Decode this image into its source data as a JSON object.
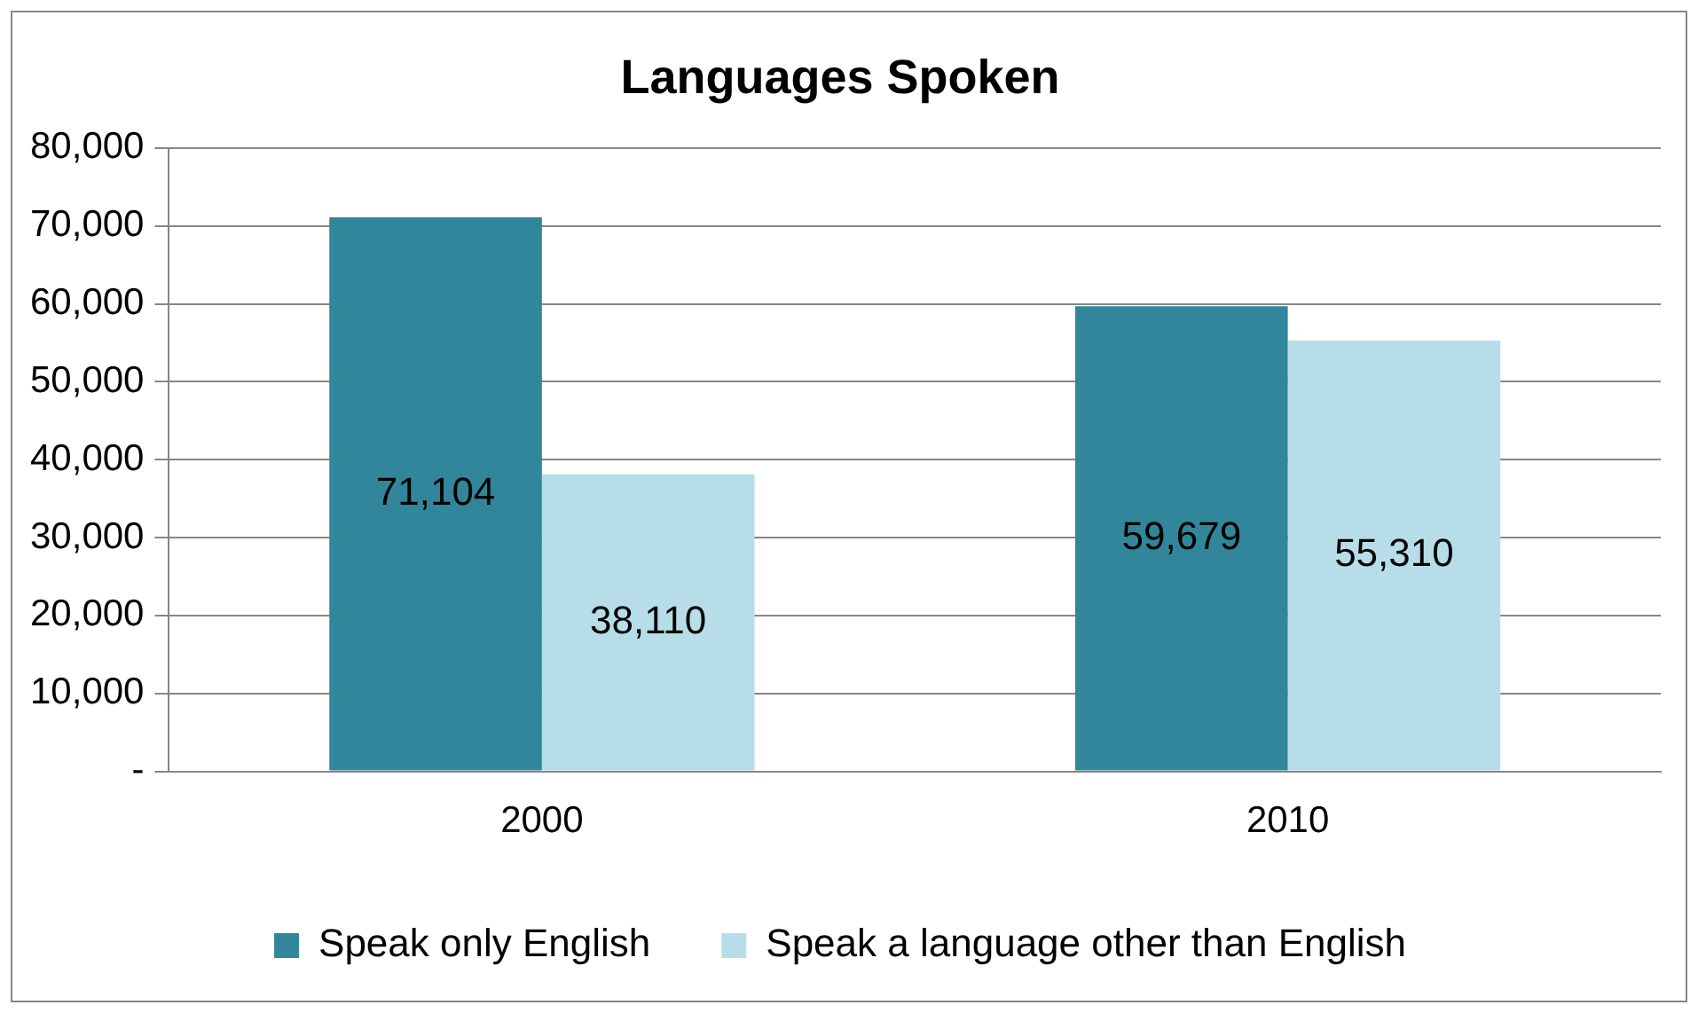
{
  "chart_data": {
    "type": "bar",
    "title": "Languages Spoken",
    "categories": [
      "2000",
      "2010"
    ],
    "series": [
      {
        "name": "Speak only English",
        "color": "#31869b",
        "values": [
          71104,
          59679
        ],
        "value_labels": [
          "71,104",
          "59,679"
        ]
      },
      {
        "name": "Speak a language other than English",
        "color": "#b7dee8",
        "values": [
          38110,
          55310
        ],
        "value_labels": [
          "38,110",
          "55,310"
        ]
      }
    ],
    "ylim": [
      0,
      80000
    ],
    "yticks": [
      {
        "value": 0,
        "label": "-"
      },
      {
        "value": 10000,
        "label": "10,000"
      },
      {
        "value": 20000,
        "label": "20,000"
      },
      {
        "value": 30000,
        "label": "30,000"
      },
      {
        "value": 40000,
        "label": "40,000"
      },
      {
        "value": 50000,
        "label": "50,000"
      },
      {
        "value": 60000,
        "label": "60,000"
      },
      {
        "value": 70000,
        "label": "70,000"
      },
      {
        "value": 80000,
        "label": "80,000"
      }
    ],
    "grid": "y",
    "legend": "bottom"
  }
}
